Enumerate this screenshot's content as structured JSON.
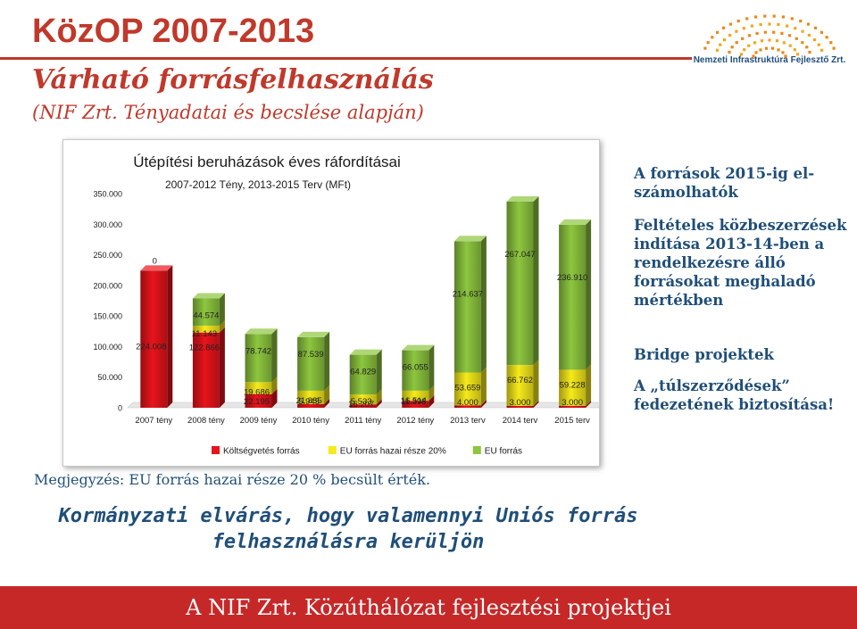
{
  "header": {
    "title": "KözOP 2007-2013",
    "subtitle_line1": "Várható forrásfelhasználás",
    "subtitle_line2": "(NIF Zrt. Tényadatai és becslése alapján)",
    "logo_text": "Nemzeti Infrastruktúra Fejlesztő Zrt."
  },
  "chart_data": {
    "type": "bar",
    "stacked": true,
    "title": "Útépítési beruházások éves ráfordításai",
    "subtitle": "2007-2012 Tény, 2013-2015 Terv (MFt)",
    "categories": [
      "2007 tény",
      "2008 tény",
      "2009 tény",
      "2010 tény",
      "2011 tény",
      "2012 tény",
      "2013 terv",
      "2014 terv",
      "2015 terv"
    ],
    "ylim": [
      0,
      350000
    ],
    "yticks": [
      "0",
      "50.000",
      "100.000",
      "150.000",
      "200.000",
      "250.000",
      "300.000",
      "350.000"
    ],
    "grid": false,
    "legend_position": "bottom",
    "series": [
      {
        "name": "Költségvetés forrás",
        "color": "#e8141b",
        "values": [
          224008,
          122866,
          22195,
          5945,
          5533,
          11398,
          4000,
          3000,
          3000
        ],
        "labels": [
          "224.008",
          "122.866",
          "22.195",
          "5.945",
          "5.533",
          "11.398",
          "4.000",
          "3.000",
          "3.000"
        ]
      },
      {
        "name": "EU forrás hazai része 20%",
        "color": "#f6ea1b",
        "values": [
          0,
          11143,
          19686,
          21885,
          16207,
          16514,
          53659,
          66762,
          59228
        ],
        "labels": [
          "0",
          "11.143",
          "19.686",
          "21.885",
          "16.207",
          "16.514",
          "53.659",
          "66.762",
          "59.228"
        ]
      },
      {
        "name": "EU forrás",
        "color": "#8dc63f",
        "values": [
          0,
          44574,
          78742,
          87539,
          64829,
          66055,
          214637,
          267047,
          236910
        ],
        "labels": [
          "",
          "44.574",
          "78.742",
          "87.539",
          "64.829",
          "66.055",
          "214.637",
          "267.047",
          "236.910"
        ]
      }
    ]
  },
  "side_notes": {
    "note1": "A források 2015-ig el-számolhatók",
    "note2": "Feltételes közbeszerzések indítása 2013-14-ben a rendelkezésre álló forrásokat meghaladó mértékben",
    "note3": "Bridge projektek",
    "note4": "A „túlszerződések” fedezetének biztosítása!"
  },
  "note": "Megjegyzés: EU forrás hazai része 20 % becsült érték.",
  "expectation": "Kormányzati elvárás, hogy valamennyi Uniós forrás felhasználásra kerüljön",
  "footer": {
    "text": "A NIF Zrt. Közúthálózat fejlesztési projektjei"
  },
  "colors": {
    "title_red": "#c0392b",
    "navy": "#1f4e79",
    "footer_red": "#c62828"
  }
}
